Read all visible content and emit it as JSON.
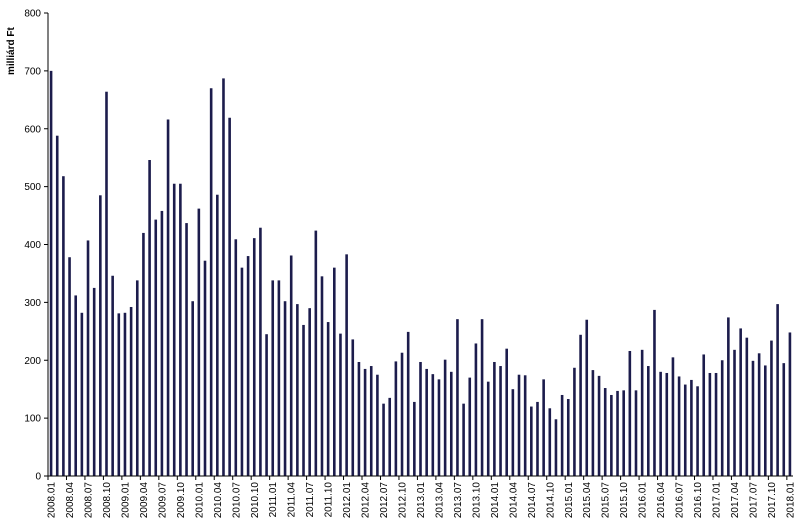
{
  "chart_data": {
    "type": "bar",
    "ylabel": "milliárd Ft",
    "xlabel": "",
    "title": "",
    "ylim": [
      0,
      800
    ],
    "yticks": [
      0,
      100,
      200,
      300,
      400,
      500,
      600,
      700,
      800
    ],
    "grid": false,
    "legend": "none",
    "bar_color": "#1c1c4c",
    "start_month": "2008.01",
    "label_every": 3,
    "categories": [
      "2008.01",
      "2008.02",
      "2008.03",
      "2008.04",
      "2008.05",
      "2008.06",
      "2008.07",
      "2008.08",
      "2008.09",
      "2008.10",
      "2008.11",
      "2008.12",
      "2009.01",
      "2009.02",
      "2009.03",
      "2009.04",
      "2009.05",
      "2009.06",
      "2009.07",
      "2009.08",
      "2009.09",
      "2009.10",
      "2009.11",
      "2009.12",
      "2010.01",
      "2010.02",
      "2010.03",
      "2010.04",
      "2010.05",
      "2010.06",
      "2010.07",
      "2010.08",
      "2010.09",
      "2010.10",
      "2010.11",
      "2010.12",
      "2011.01",
      "2011.02",
      "2011.03",
      "2011.04",
      "2011.05",
      "2011.06",
      "2011.07",
      "2011.08",
      "2011.09",
      "2011.10",
      "2011.11",
      "2011.12",
      "2012.01",
      "2012.02",
      "2012.03",
      "2012.04",
      "2012.05",
      "2012.06",
      "2012.07",
      "2012.08",
      "2012.09",
      "2012.10",
      "2012.11",
      "2012.12",
      "2013.01",
      "2013.02",
      "2013.03",
      "2013.04",
      "2013.05",
      "2013.06",
      "2013.07",
      "2013.08",
      "2013.09",
      "2013.10",
      "2013.11",
      "2013.12",
      "2014.01",
      "2014.02",
      "2014.03",
      "2014.04",
      "2014.05",
      "2014.06",
      "2014.07",
      "2014.08",
      "2014.09",
      "2014.10",
      "2014.11",
      "2014.12",
      "2015.01",
      "2015.02",
      "2015.03",
      "2015.04",
      "2015.05",
      "2015.06",
      "2015.07",
      "2015.08",
      "2015.09",
      "2015.10",
      "2015.11",
      "2015.12",
      "2016.01",
      "2016.02",
      "2016.03",
      "2016.04",
      "2016.05",
      "2016.06",
      "2016.07",
      "2016.08",
      "2016.09",
      "2016.10",
      "2016.11",
      "2016.12",
      "2017.01",
      "2017.02",
      "2017.03",
      "2017.04",
      "2017.05",
      "2017.06",
      "2017.07",
      "2017.08",
      "2017.09",
      "2017.10",
      "2017.11",
      "2017.12",
      "2018.01"
    ],
    "values": [
      700,
      588,
      518,
      378,
      312,
      282,
      407,
      325,
      485,
      664,
      346,
      281,
      282,
      292,
      338,
      420,
      546,
      443,
      458,
      616,
      505,
      505,
      437,
      302,
      462,
      372,
      670,
      486,
      687,
      619,
      409,
      360,
      380,
      411,
      429,
      245,
      338,
      338,
      302,
      381,
      297,
      261,
      290,
      424,
      345,
      266,
      360,
      246,
      383,
      236,
      197,
      185,
      190,
      175,
      125,
      135,
      198,
      213,
      249,
      128,
      197,
      185,
      176,
      167,
      201,
      180,
      271,
      125,
      170,
      229,
      271,
      163,
      197,
      190,
      220,
      150,
      175,
      174,
      120,
      128,
      167,
      117,
      98,
      140,
      133,
      187,
      244,
      270,
      183,
      173,
      152,
      140,
      147,
      148,
      216,
      148,
      218,
      190,
      287,
      180,
      178,
      205,
      172,
      158,
      166,
      155,
      210,
      178,
      178,
      200,
      274,
      218,
      255,
      239,
      199,
      212,
      191,
      234,
      297,
      195,
      248
    ]
  }
}
